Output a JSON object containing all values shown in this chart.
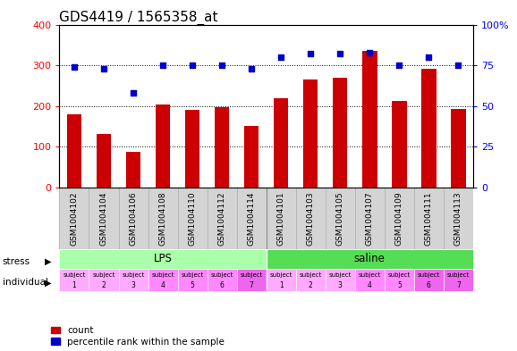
{
  "title": "GDS4419 / 1565358_at",
  "samples": [
    "GSM1004102",
    "GSM1004104",
    "GSM1004106",
    "GSM1004108",
    "GSM1004110",
    "GSM1004112",
    "GSM1004114",
    "GSM1004101",
    "GSM1004103",
    "GSM1004105",
    "GSM1004107",
    "GSM1004109",
    "GSM1004111",
    "GSM1004113"
  ],
  "counts": [
    180,
    132,
    88,
    204,
    190,
    198,
    152,
    220,
    266,
    270,
    336,
    212,
    292,
    192
  ],
  "percentiles": [
    74,
    73,
    58,
    75,
    75,
    75,
    73,
    80,
    82,
    82,
    83,
    75,
    80,
    75
  ],
  "ylim_left": [
    0,
    400
  ],
  "ylim_right": [
    0,
    100
  ],
  "yticks_left": [
    0,
    100,
    200,
    300,
    400
  ],
  "yticks_right": [
    0,
    25,
    50,
    75,
    100
  ],
  "bar_color": "#cc0000",
  "dot_color": "#0000cc",
  "bar_width": 0.5,
  "stress_groups": [
    {
      "label": "LPS",
      "start": 0,
      "end": 7,
      "color": "#aaffaa"
    },
    {
      "label": "saline",
      "start": 7,
      "end": 14,
      "color": "#55dd55"
    }
  ],
  "individual_colors_light": "#ffaaff",
  "individual_colors_mid": "#ff88ff",
  "individual_colors_dark": "#ee66ee",
  "individual_pattern": [
    0,
    0,
    0,
    1,
    1,
    1,
    2,
    0,
    0,
    0,
    1,
    1,
    2,
    2
  ],
  "subject_numbers": [
    1,
    2,
    3,
    4,
    5,
    6,
    7,
    1,
    2,
    3,
    4,
    5,
    6,
    7
  ],
  "stress_label": "stress",
  "individual_label": "individual",
  "legend_count": "count",
  "legend_percentile": "percentile rank within the sample",
  "title_fontsize": 11,
  "tick_fontsize": 8,
  "sample_fontsize": 6.5
}
